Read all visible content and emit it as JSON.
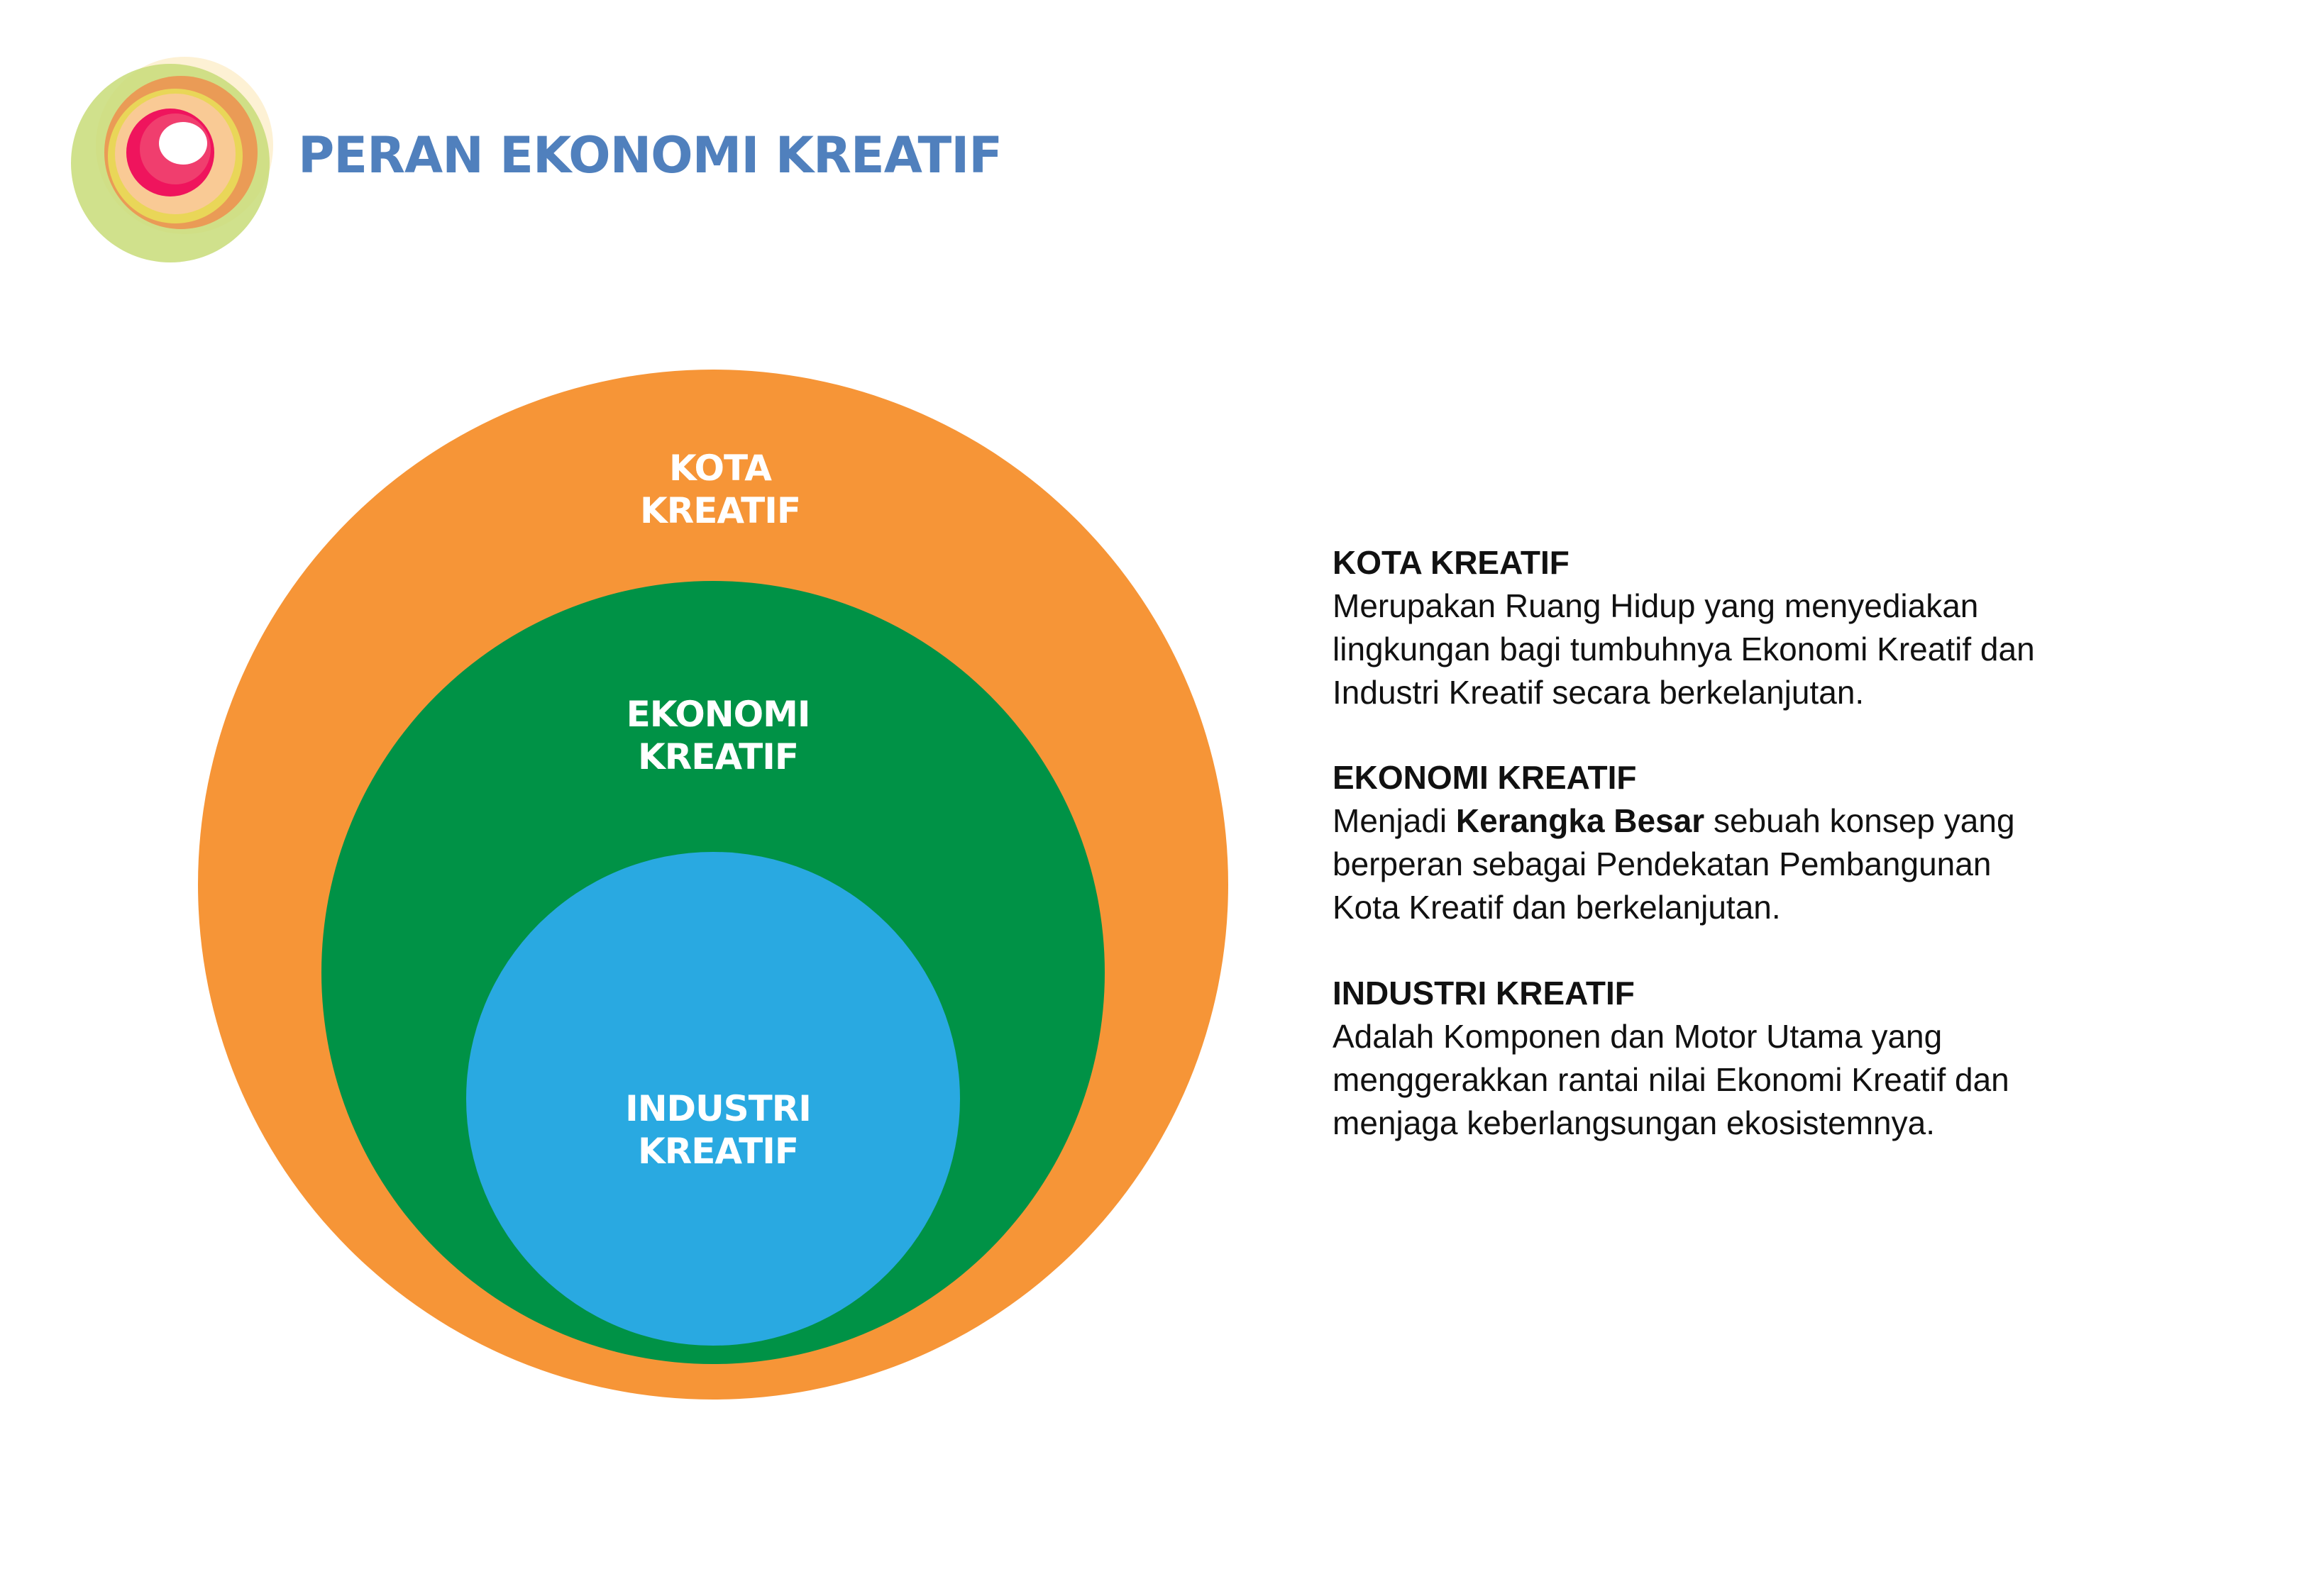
{
  "header": {
    "title": "PERAN EKONOMI KREATIF",
    "logo_icon": "concentric-rings-logo",
    "title_color": "#5080bd"
  },
  "diagram": {
    "outer": {
      "label_line1": "KOTA",
      "label_line2": "KREATIF",
      "color": "#f69537"
    },
    "middle": {
      "label_line1": "EKONOMI",
      "label_line2": "KREATIF",
      "color": "#009246"
    },
    "inner": {
      "label_line1": "INDUSTRI",
      "label_line2": "KREATIF",
      "color": "#29a9e1"
    }
  },
  "descriptions": [
    {
      "heading": "KOTA KREATIF",
      "lines": [
        "Merupakan Ruang Hidup yang menyediakan",
        "lingkungan bagi tumbuhnya Ekonomi Kreatif dan",
        "Industri Kreatif secara berkelanjutan."
      ]
    },
    {
      "heading": "EKONOMI KREATIF",
      "line1_pre": "Menjadi ",
      "line1_bold": "Kerangka Besar",
      "line1_post": " sebuah konsep yang",
      "lines": [
        "berperan sebagai Pendekatan Pembangunan",
        "Kota Kreatif dan berkelanjutan."
      ]
    },
    {
      "heading": "INDUSTRI KREATIF",
      "lines": [
        "Adalah Komponen dan Motor Utama yang",
        "menggerakkan rantai nilai Ekonomi Kreatif dan",
        "menjaga keberlangsungan ekosistemnya."
      ]
    }
  ]
}
